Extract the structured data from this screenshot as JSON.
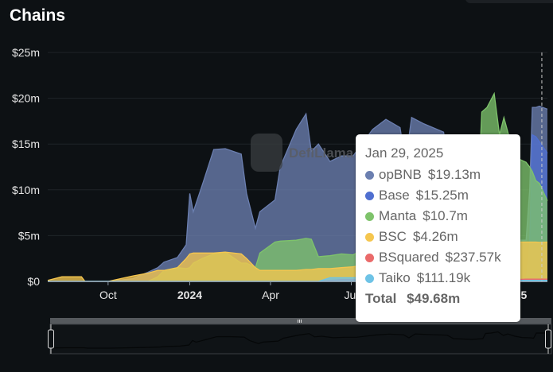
{
  "header": {
    "title": "Chains"
  },
  "watermark": "DefiLlama",
  "tooltip": {
    "date": "Jan 29, 2025",
    "rows": [
      {
        "name": "opBNB",
        "value": "$19.13m",
        "color": "#6b7fb0"
      },
      {
        "name": "Base",
        "value": "$15.25m",
        "color": "#4f6fd0"
      },
      {
        "name": "Manta",
        "value": "$10.7m",
        "color": "#7ec36b"
      },
      {
        "name": "BSC",
        "value": "$4.26m",
        "color": "#f5c64f"
      },
      {
        "name": "BSquared",
        "value": "$237.57k",
        "color": "#ea6a6a"
      },
      {
        "name": "Taiko",
        "value": "$111.19k",
        "color": "#6ec3e6"
      }
    ],
    "total_label": "Total",
    "total_value": "$49.68m"
  },
  "chart_data": {
    "type": "area",
    "stacked": false,
    "title": "Chains",
    "ylim": [
      0,
      25000000
    ],
    "yticks": [
      "$0",
      "$5m",
      "$10m",
      "$15m",
      "$20m",
      "$25m"
    ],
    "xticks": [
      {
        "label": "Oct",
        "date": "2023-10-01",
        "bold": false
      },
      {
        "label": "2024",
        "date": "2024-01-01",
        "bold": true
      },
      {
        "label": "Apr",
        "date": "2024-04-01",
        "bold": false
      },
      {
        "label": "Jul",
        "date": "2024-07-01",
        "bold": false
      },
      {
        "label": "2025",
        "date": "2025-01-01",
        "bold": true
      }
    ],
    "xlim": [
      "2023-07-25",
      "2025-02-07"
    ],
    "hover_date": "2025-01-29",
    "grid": true,
    "units": "USD millions",
    "x": [
      "2023-07-25",
      "2023-08-10",
      "2023-09-01",
      "2023-09-05",
      "2023-10-01",
      "2023-10-29",
      "2023-11-15",
      "2023-11-26",
      "2023-12-03",
      "2023-12-18",
      "2023-12-28",
      "2024-01-01",
      "2024-01-05",
      "2024-01-15",
      "2024-01-28",
      "2024-02-10",
      "2024-02-28",
      "2024-03-05",
      "2024-03-15",
      "2024-03-20",
      "2024-04-06",
      "2024-04-12",
      "2024-04-30",
      "2024-05-11",
      "2024-05-17",
      "2024-05-25",
      "2024-06-07",
      "2024-06-20",
      "2024-07-03",
      "2024-07-25",
      "2024-08-09",
      "2024-08-25",
      "2024-08-31",
      "2024-09-07",
      "2024-09-21",
      "2024-10-13",
      "2024-10-20",
      "2024-11-10",
      "2024-11-22",
      "2024-11-25",
      "2024-12-01",
      "2024-12-09",
      "2024-12-15",
      "2024-12-20",
      "2024-12-28",
      "2025-01-05",
      "2025-01-14",
      "2025-01-18",
      "2025-01-21",
      "2025-01-25",
      "2025-01-29",
      "2025-02-07"
    ],
    "series": [
      {
        "name": "opBNB",
        "color": "#6b7fb0",
        "values": [
          0,
          0,
          0,
          0,
          0,
          0.3,
          1,
          1.5,
          2.1,
          2.6,
          4,
          9.6,
          7.6,
          10.5,
          14.4,
          14.5,
          13.9,
          9.6,
          5.8,
          7.6,
          8.9,
          12.5,
          16.6,
          18.3,
          14.2,
          15,
          13.1,
          13.7,
          13.7,
          16.6,
          17.7,
          16.8,
          13,
          17.9,
          17.2,
          16.3,
          12,
          9,
          7,
          6.5,
          6,
          5.5,
          5,
          5,
          4.8,
          4.5,
          4.5,
          10,
          19,
          19,
          19.13,
          18.8
        ]
      },
      {
        "name": "Base",
        "color": "#4f6fd0",
        "values": [
          0,
          0,
          0,
          0,
          0,
          0,
          0,
          0,
          0,
          0,
          0,
          0,
          0,
          0,
          0,
          0,
          0,
          0,
          0,
          0,
          0,
          0,
          0,
          0,
          0,
          0,
          0,
          0,
          0,
          0,
          0,
          0,
          0,
          0,
          0,
          0,
          0,
          0,
          0,
          0,
          0,
          0,
          0,
          0,
          0,
          0,
          0,
          4,
          16,
          15.8,
          15.25,
          14
        ]
      },
      {
        "name": "Manta",
        "color": "#7ec36b",
        "values": [
          0,
          0,
          0,
          0,
          0,
          0,
          0,
          0.5,
          1.2,
          1.5,
          1.4,
          1.5,
          2,
          2.5,
          3,
          3.2,
          2,
          2,
          1.5,
          3.1,
          4.3,
          4.4,
          4.5,
          4.7,
          4.6,
          2.7,
          2.8,
          3,
          2.9,
          4,
          5,
          6,
          6,
          8,
          10,
          11,
          10,
          11,
          12,
          18.5,
          19,
          20.5,
          16,
          17.9,
          15,
          13.4,
          13,
          12.5,
          12,
          11,
          10.7,
          8.8
        ]
      },
      {
        "name": "BSC",
        "color": "#f5c64f",
        "values": [
          0.1,
          0.5,
          0.5,
          0,
          0,
          0.6,
          0.9,
          1.2,
          1.2,
          1.5,
          2.5,
          3,
          3.1,
          3.1,
          3.1,
          3.2,
          3,
          2.5,
          1.5,
          1.2,
          1.2,
          1.2,
          1.2,
          1.3,
          1.3,
          1.4,
          1.4,
          1.5,
          1.6,
          2,
          2.2,
          2.5,
          2.5,
          3,
          3,
          3.5,
          3.5,
          3.8,
          4,
          4,
          4.1,
          4.1,
          4.2,
          4.2,
          4.2,
          4.3,
          4.3,
          4.3,
          4.3,
          4.3,
          4.26,
          4.3
        ]
      },
      {
        "name": "BSquared",
        "color": "#ea6a6a",
        "values": [
          0,
          0,
          0,
          0,
          0,
          0,
          0,
          0,
          0,
          0,
          0,
          0,
          0,
          0,
          0,
          0,
          0,
          0,
          0,
          0,
          0,
          0,
          0,
          0,
          0,
          0,
          0.1,
          0.2,
          0.2,
          0.2,
          0.2,
          0.2,
          0.2,
          0.2,
          0.2,
          0.2,
          0.2,
          0.2,
          0.2,
          0.2,
          0.2,
          0.2,
          0.2,
          0.2,
          0.2,
          0.2,
          0.24,
          0.24,
          0.24,
          0.24,
          0.24,
          0.24
        ]
      },
      {
        "name": "Taiko",
        "color": "#6ec3e6",
        "values": [
          0,
          0,
          0,
          0,
          0,
          0,
          0,
          0,
          0,
          0,
          0,
          0,
          0,
          0,
          0,
          0,
          0,
          0,
          0,
          0,
          0,
          0,
          0,
          0,
          0,
          0,
          0.4,
          0.4,
          0.4,
          0.4,
          0.35,
          0.35,
          0.3,
          0.3,
          0.3,
          0.3,
          0.25,
          0.25,
          0.2,
          0.2,
          0.2,
          0.2,
          0.15,
          0.15,
          0.15,
          0.12,
          0.12,
          0.11,
          0.11,
          0.11,
          0.11,
          0.11
        ]
      }
    ]
  }
}
